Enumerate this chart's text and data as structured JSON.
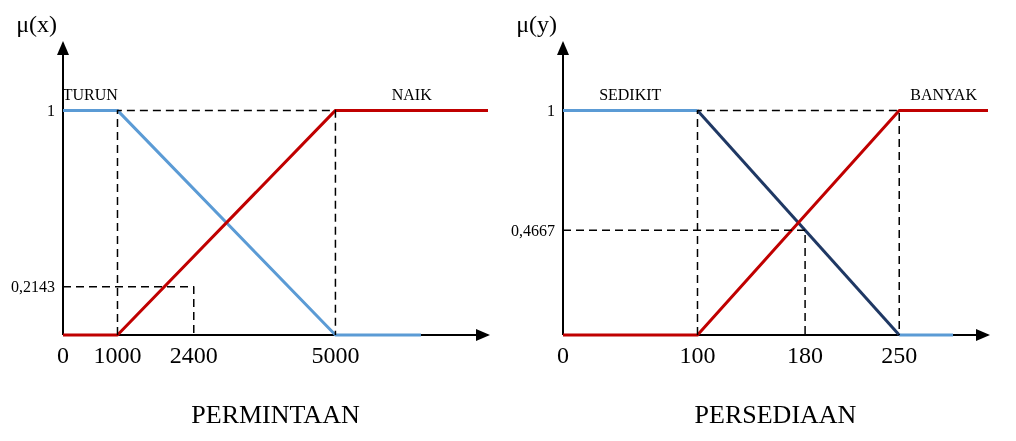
{
  "chart_data": [
    {
      "type": "line",
      "xlabel": "PERMINTAAN",
      "ylabel": "μ(x)",
      "xlim": [
        0,
        7800
      ],
      "ylim": [
        0,
        1.3
      ],
      "xticks": [
        0,
        1000,
        2400,
        5000
      ],
      "yticks": [
        {
          "value": 0.2143,
          "label": "0,2143"
        },
        1
      ],
      "series": [
        {
          "name": "TURUN",
          "color": "#5b9bd5",
          "x": [
            0,
            1000,
            5000,
            6570
          ],
          "values": [
            1,
            1,
            0,
            0
          ]
        },
        {
          "name": "NAIK",
          "color": "#c00000",
          "x": [
            0,
            1000,
            5000,
            7800
          ],
          "values": [
            0,
            0,
            1,
            1
          ]
        },
        {
          "color": "#000000",
          "line_style": "dashed",
          "x": [
            1000,
            1000,
            5000,
            5000
          ],
          "values": [
            0,
            1,
            1,
            0
          ]
        },
        {
          "color": "#000000",
          "line_style": "dashed",
          "x": [
            0,
            2400,
            2400
          ],
          "values": [
            0.2143,
            0.2143,
            0
          ]
        }
      ]
    },
    {
      "type": "line",
      "xlabel": "PERSEDIAAN",
      "ylabel": "μ(y)",
      "xlim": [
        0,
        316
      ],
      "ylim": [
        0,
        1.3
      ],
      "xticks": [
        0,
        100,
        180,
        250
      ],
      "yticks": [
        {
          "value": 0.4667,
          "label": "0,4667"
        },
        1
      ],
      "series": [
        {
          "name": "SEDIKIT",
          "color": "#5b9bd5",
          "x": [
            0,
            100
          ],
          "values": [
            1,
            1
          ]
        },
        {
          "color": "#1f3864",
          "x": [
            100,
            250
          ],
          "values": [
            1,
            0
          ]
        },
        {
          "color": "#5b9bd5",
          "x": [
            250,
            290
          ],
          "values": [
            0,
            0
          ]
        },
        {
          "name": "BANYAK",
          "color": "#c00000",
          "x": [
            0,
            100,
            250,
            316
          ],
          "values": [
            0,
            0,
            1,
            1
          ]
        },
        {
          "color": "#000000",
          "line_style": "dashed",
          "x": [
            100,
            100,
            250,
            250
          ],
          "values": [
            0,
            1,
            1,
            0
          ]
        },
        {
          "color": "#000000",
          "line_style": "dashed",
          "x": [
            0,
            180,
            180
          ],
          "values": [
            0.4667,
            0.4667,
            0
          ]
        }
      ]
    }
  ]
}
